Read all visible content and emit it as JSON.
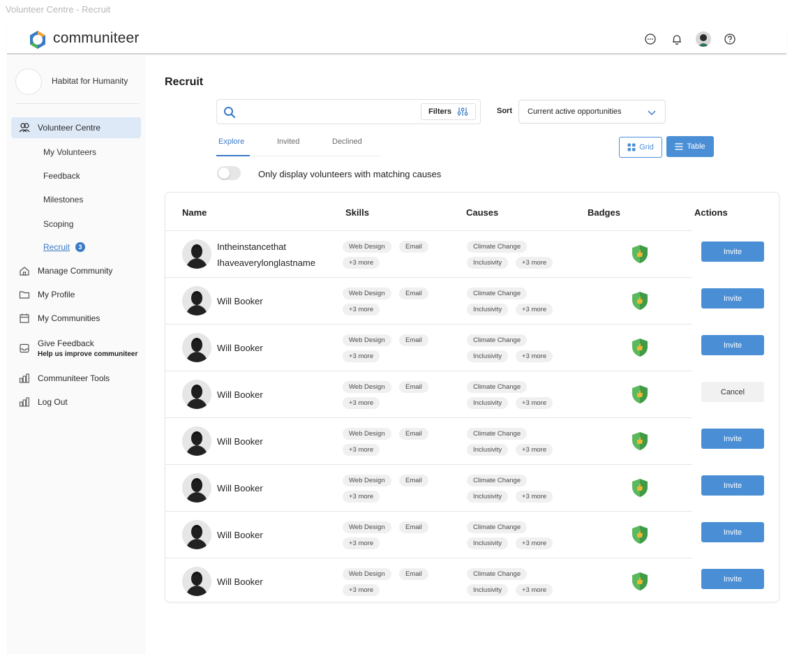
{
  "window": {
    "title": "Volunteer Centre - Recruit"
  },
  "brand": {
    "name": "communiteer",
    "logo_color": "#3a7ac7"
  },
  "topbar": {
    "icons": [
      "chat-icon",
      "bell-icon",
      "user-avatar",
      "help-icon"
    ]
  },
  "sidebar": {
    "org_name": "Habitat for Humanity",
    "nav": [
      {
        "label": "Volunteer Centre",
        "icon": "users-icon",
        "active": true
      },
      {
        "label": "Manage Community",
        "icon": "home-icon"
      },
      {
        "label": "My Profile",
        "icon": "folder-icon"
      },
      {
        "label": "My Communities",
        "icon": "calendar-icon"
      },
      {
        "label": "Give Feedback",
        "sub": "Help us improve communiteer",
        "icon": "inbox-icon"
      },
      {
        "label": "Communiteer Tools",
        "icon": "chart-icon"
      },
      {
        "label": "Log Out",
        "icon": "chart-icon"
      }
    ],
    "sub_items": [
      {
        "label": "My Volunteers"
      },
      {
        "label": "Feedback"
      },
      {
        "label": "Milestones"
      },
      {
        "label": "Scoping"
      },
      {
        "label": "Recruit",
        "active": true,
        "count": "3"
      }
    ]
  },
  "main": {
    "title": "Recruit",
    "search": {
      "value": "",
      "placeholder": ""
    },
    "filters_label": "Filters",
    "sort": {
      "label": "Sort",
      "value": "Current active opportunities"
    },
    "tabs": [
      {
        "label": "Explore",
        "active": true
      },
      {
        "label": "Invited"
      },
      {
        "label": "Declined"
      }
    ],
    "views": {
      "grid_label": "Grid",
      "table_label": "Table",
      "active": "Table"
    },
    "toggle_label": "Only display volunteers with matching causes",
    "accent_color": "#4a8fd6"
  },
  "table": {
    "headers": {
      "name": "Name",
      "skills": "Skills",
      "causes": "Causes",
      "badges": "Badges",
      "actions": "Actions"
    },
    "rows": [
      {
        "name_line1": "Intheinstancethat",
        "name_line2": "Ihaveaverylonglastname",
        "skill1": "Web Design",
        "skill2": "Email",
        "skill_more": "+3 more",
        "cause1": "Climate Change",
        "cause2": "Inclusivity",
        "cause_more": "+3 more",
        "action": "Invite"
      },
      {
        "name": "Will Booker",
        "skill1": "Web Design",
        "skill2": "Email",
        "skill_more": "+3 more",
        "cause1": "Climate Change",
        "cause2": "Inclusivity",
        "cause_more": "+3 more",
        "action": "Invite"
      },
      {
        "name": "Will Booker",
        "skill1": "Web Design",
        "skill2": "Email",
        "skill_more": "+3 more",
        "cause1": "Climate Change",
        "cause2": "Inclusivity",
        "cause_more": "+3 more",
        "action": "Invite"
      },
      {
        "name": "Will Booker",
        "skill1": "Web Design",
        "skill2": "Email",
        "skill_more": "+3 more",
        "cause1": "Climate Change",
        "cause2": "Inclusivity",
        "cause_more": "+3 more",
        "action": "Cancel"
      },
      {
        "name": "Will Booker",
        "skill1": "Web Design",
        "skill2": "Email",
        "skill_more": "+3 more",
        "cause1": "Climate Change",
        "cause2": "Inclusivity",
        "cause_more": "+3 more",
        "action": "Invite"
      },
      {
        "name": "Will Booker",
        "skill1": "Web Design",
        "skill2": "Email",
        "skill_more": "+3 more",
        "cause1": "Climate Change",
        "cause2": "Inclusivity",
        "cause_more": "+3 more",
        "action": "Invite"
      },
      {
        "name": "Will Booker",
        "skill1": "Web Design",
        "skill2": "Email",
        "skill_more": "+3 more",
        "cause1": "Climate Change",
        "cause2": "Inclusivity",
        "cause_more": "+3 more",
        "action": "Invite"
      },
      {
        "name": "Will Booker",
        "skill1": "Web Design",
        "skill2": "Email",
        "skill_more": "+3 more",
        "cause1": "Climate Change",
        "cause2": "Inclusivity",
        "cause_more": "+3 more",
        "action": "Invite"
      }
    ]
  }
}
